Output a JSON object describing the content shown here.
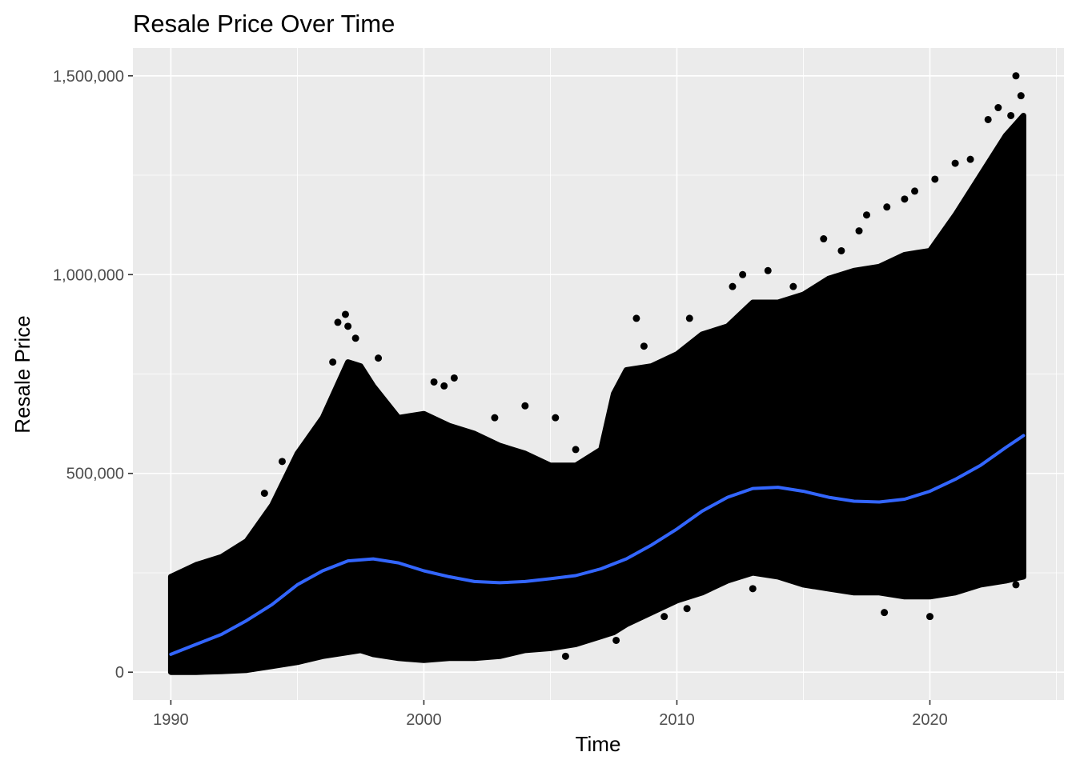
{
  "chart_data": {
    "type": "scatter",
    "title": "Resale Price Over Time",
    "xlabel": "Time",
    "ylabel": "Resale Price",
    "xlim": [
      1988.5,
      2025.3
    ],
    "ylim": [
      -70000,
      1570000
    ],
    "x_ticks": [
      1990,
      2000,
      2010,
      2020
    ],
    "x_tick_labels": [
      "1990",
      "2000",
      "2010",
      "2020"
    ],
    "y_ticks": [
      0,
      500000,
      1000000,
      1500000
    ],
    "y_tick_labels": [
      "0",
      "500,000",
      "1,000,000",
      "1,500,000"
    ],
    "grid": true,
    "panel_background": "#ebebeb",
    "grid_color": "#ffffff",
    "point_color": "#000000",
    "smooth_color": "#3366ff",
    "point_band": {
      "x": [
        1990,
        1991,
        1992,
        1993,
        1994,
        1995,
        1996,
        1997,
        1997.5,
        1998,
        1999,
        2000,
        2001,
        2002,
        2003,
        2004,
        2005,
        2006,
        2007,
        2007.5,
        2008,
        2009,
        2010,
        2011,
        2012,
        2013,
        2014,
        2015,
        2016,
        2017,
        2018,
        2019,
        2020,
        2021,
        2022,
        2023,
        2023.7
      ],
      "upper": [
        240000,
        270000,
        290000,
        330000,
        420000,
        550000,
        640000,
        780000,
        770000,
        720000,
        640000,
        650000,
        620000,
        600000,
        570000,
        550000,
        520000,
        520000,
        560000,
        700000,
        760000,
        770000,
        800000,
        850000,
        870000,
        930000,
        930000,
        950000,
        990000,
        1010000,
        1020000,
        1050000,
        1060000,
        1150000,
        1250000,
        1350000,
        1400000
      ],
      "lower": [
        0,
        0,
        2000,
        5000,
        15000,
        25000,
        40000,
        50000,
        55000,
        45000,
        35000,
        30000,
        35000,
        35000,
        40000,
        55000,
        60000,
        70000,
        90000,
        100000,
        120000,
        150000,
        180000,
        200000,
        230000,
        250000,
        240000,
        220000,
        210000,
        200000,
        200000,
        190000,
        190000,
        200000,
        220000,
        230000,
        240000
      ]
    },
    "outliers": [
      {
        "x": 1996.6,
        "y": 880000
      },
      {
        "x": 1996.9,
        "y": 900000
      },
      {
        "x": 1997.0,
        "y": 870000
      },
      {
        "x": 1997.3,
        "y": 840000
      },
      {
        "x": 1996.4,
        "y": 780000
      },
      {
        "x": 1998.2,
        "y": 790000
      },
      {
        "x": 1994.4,
        "y": 530000
      },
      {
        "x": 1993.7,
        "y": 450000
      },
      {
        "x": 2000.4,
        "y": 730000
      },
      {
        "x": 2000.8,
        "y": 720000
      },
      {
        "x": 2001.2,
        "y": 740000
      },
      {
        "x": 2002.8,
        "y": 640000
      },
      {
        "x": 2004.0,
        "y": 670000
      },
      {
        "x": 2005.2,
        "y": 640000
      },
      {
        "x": 2006.0,
        "y": 560000
      },
      {
        "x": 2008.4,
        "y": 890000
      },
      {
        "x": 2008.7,
        "y": 820000
      },
      {
        "x": 2009.8,
        "y": 790000
      },
      {
        "x": 2010.5,
        "y": 890000
      },
      {
        "x": 2012.2,
        "y": 970000
      },
      {
        "x": 2012.6,
        "y": 1000000
      },
      {
        "x": 2013.6,
        "y": 1010000
      },
      {
        "x": 2014.6,
        "y": 970000
      },
      {
        "x": 2015.8,
        "y": 1090000
      },
      {
        "x": 2016.5,
        "y": 1060000
      },
      {
        "x": 2017.2,
        "y": 1110000
      },
      {
        "x": 2017.5,
        "y": 1150000
      },
      {
        "x": 2018.3,
        "y": 1170000
      },
      {
        "x": 2019.0,
        "y": 1190000
      },
      {
        "x": 2019.4,
        "y": 1210000
      },
      {
        "x": 2020.2,
        "y": 1240000
      },
      {
        "x": 2021.0,
        "y": 1280000
      },
      {
        "x": 2021.6,
        "y": 1290000
      },
      {
        "x": 2022.3,
        "y": 1390000
      },
      {
        "x": 2022.7,
        "y": 1420000
      },
      {
        "x": 2023.2,
        "y": 1400000
      },
      {
        "x": 2023.4,
        "y": 1500000
      },
      {
        "x": 2023.6,
        "y": 1450000
      },
      {
        "x": 2005.6,
        "y": 40000
      },
      {
        "x": 2020.0,
        "y": 140000
      },
      {
        "x": 2018.2,
        "y": 150000
      },
      {
        "x": 2009.5,
        "y": 140000
      },
      {
        "x": 2010.4,
        "y": 160000
      },
      {
        "x": 2007.6,
        "y": 80000
      },
      {
        "x": 2013.0,
        "y": 210000
      },
      {
        "x": 2023.4,
        "y": 220000
      }
    ],
    "smooth_line": {
      "x": [
        1990,
        1991,
        1992,
        1993,
        1994,
        1995,
        1996,
        1997,
        1998,
        1999,
        2000,
        2001,
        2002,
        2003,
        2004,
        2005,
        2006,
        2007,
        2008,
        2009,
        2010,
        2011,
        2012,
        2013,
        2014,
        2015,
        2016,
        2017,
        2018,
        2019,
        2020,
        2021,
        2022,
        2023,
        2023.7
      ],
      "y": [
        45000,
        70000,
        95000,
        130000,
        170000,
        220000,
        255000,
        280000,
        285000,
        275000,
        255000,
        240000,
        228000,
        225000,
        228000,
        235000,
        243000,
        260000,
        285000,
        320000,
        360000,
        405000,
        440000,
        462000,
        465000,
        455000,
        440000,
        430000,
        428000,
        435000,
        455000,
        485000,
        520000,
        565000,
        595000
      ]
    }
  }
}
